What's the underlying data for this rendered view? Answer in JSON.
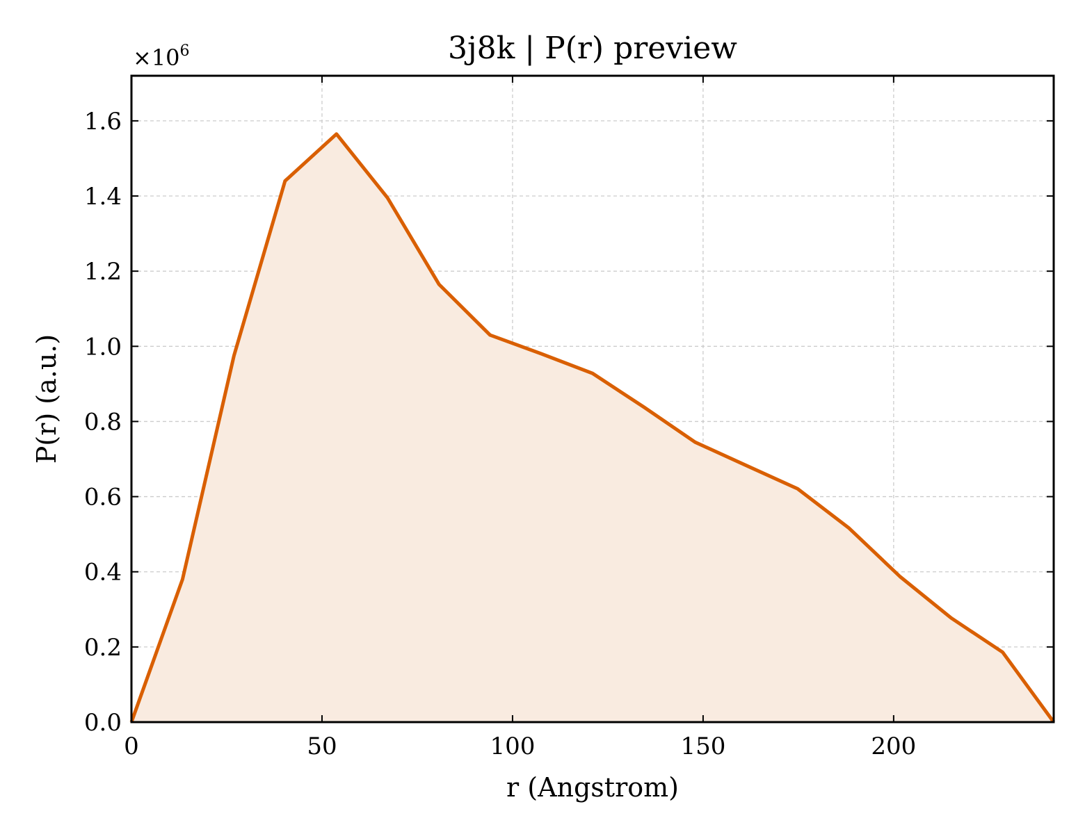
{
  "chart_data": {
    "type": "area",
    "title": "3j8k | P(r) preview",
    "xlabel": "r (Angstrom)",
    "ylabel": "P(r) (a.u.)",
    "y_offset_label": "×10",
    "y_offset_exponent": "6",
    "xlim": [
      0,
      242
    ],
    "ylim": [
      0,
      1.72
    ],
    "x_ticks": [
      0,
      50,
      100,
      150,
      200
    ],
    "x_tick_labels": [
      "0",
      "50",
      "100",
      "150",
      "200"
    ],
    "y_ticks": [
      0,
      0.2,
      0.4,
      0.6,
      0.8,
      1.0,
      1.2,
      1.4,
      1.6
    ],
    "y_tick_labels": [
      "0.0",
      "0.2",
      "0.4",
      "0.6",
      "0.8",
      "1.0",
      "1.2",
      "1.4",
      "1.6"
    ],
    "grid": true,
    "line_color": "#d95f02",
    "fill_color": "#f9ebe0",
    "series": [
      {
        "x": [
          0,
          13.4,
          26.9,
          40.3,
          53.8,
          67.2,
          80.7,
          94.1,
          107.6,
          121.0,
          134.5,
          147.9,
          161.3,
          174.8,
          188.2,
          201.7,
          215.1,
          228.6,
          242.0
        ],
        "y": [
          0.0,
          0.38,
          0.975,
          1.44,
          1.565,
          1.395,
          1.165,
          1.03,
          0.98,
          0.928,
          0.838,
          0.745,
          0.683,
          0.621,
          0.517,
          0.387,
          0.277,
          0.186,
          0.0
        ]
      }
    ]
  }
}
